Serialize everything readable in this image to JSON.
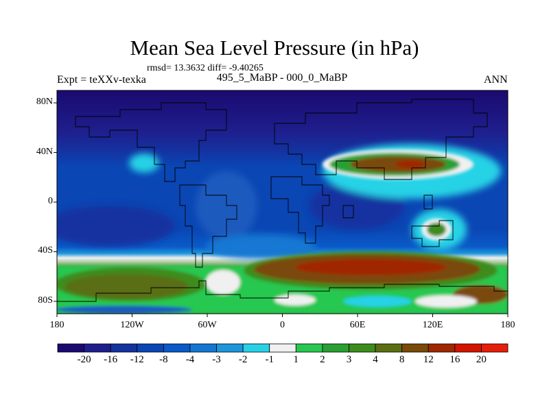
{
  "title": "Mean Sea Level Pressure (in hPa)",
  "stats": "rmsd= 13.3632 diff= -9.40265",
  "experiment": "Expt = teXXv-texka",
  "period": "495_5_MaBP - 000_0_MaBP",
  "season": "ANN",
  "lat_labels": [
    "80N",
    "40N",
    "0",
    "40S",
    "80S"
  ],
  "lat_values": [
    80,
    40,
    0,
    -40,
    -80
  ],
  "lon_labels": [
    "180",
    "120W",
    "60W",
    "0",
    "60E",
    "120E",
    "180"
  ],
  "lon_values": [
    -180,
    -120,
    -60,
    0,
    60,
    120,
    180
  ],
  "colorbar": {
    "labels": [
      "-20",
      "-16",
      "-12",
      "-8",
      "-4",
      "-3",
      "-2",
      "-1",
      "1",
      "2",
      "3",
      "4",
      "8",
      "12",
      "16",
      "20"
    ],
    "colors": [
      "#1a0a70",
      "#1e1e8c",
      "#1432a0",
      "#0a46b4",
      "#0a5ac8",
      "#1478d2",
      "#1e96dc",
      "#28d2e6",
      "#f0f0f0",
      "#28c850",
      "#28a032",
      "#3c8c1e",
      "#5a6e14",
      "#7a4a0a",
      "#a02800",
      "#d21400",
      "#e61e0a"
    ]
  },
  "colors": {
    "background_field": "#0a46b4",
    "pole_low": "#1a0a70",
    "high_brown": "#7a4a0a",
    "high_green": "#3c8c1e",
    "near_zero": "#f0f0f0"
  }
}
